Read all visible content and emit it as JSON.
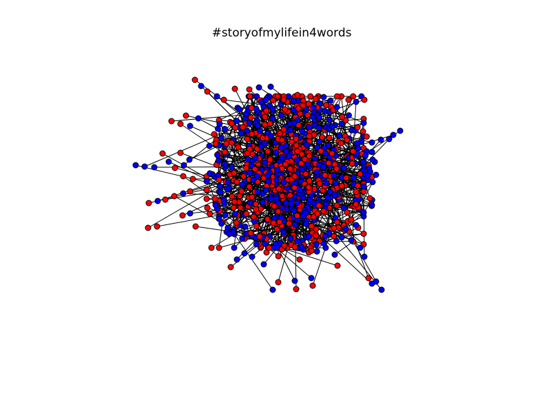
{
  "figure": {
    "title": "#storyofmylifein4words",
    "background": "#ffffff"
  },
  "graph": {
    "node_colors": {
      "red": "#ff0000",
      "blue": "#0000ff"
    },
    "edge_color": "#000000"
  }
}
